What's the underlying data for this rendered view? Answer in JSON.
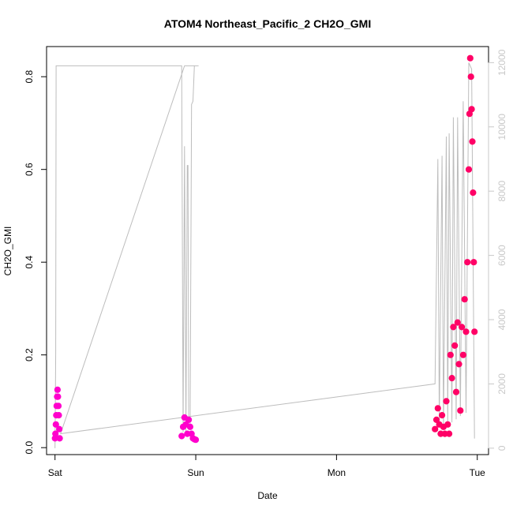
{
  "chart_data": {
    "type": "scatter",
    "title": "ATOM4 Northeast_Pacific_2 CH2O_GMI",
    "xlabel": "Date",
    "ylabel": "CH2O_GMI",
    "x_ticks": [
      "Sat",
      "Sun",
      "Mon",
      "Tue"
    ],
    "xlim_days": [
      -0.06,
      3.08
    ],
    "ylim": [
      -0.015,
      0.865
    ],
    "y_ticks": [
      0.0,
      0.2,
      0.4,
      0.6,
      0.8
    ],
    "y2lim": [
      -200,
      12500
    ],
    "y2_ticks": [
      0,
      2000,
      4000,
      6000,
      8000,
      10000,
      12000
    ],
    "grid": false,
    "colors": {
      "altitude_line": "#bdbdbd",
      "right_axis": "#c8c8c8",
      "marker_early": "#ff00cc",
      "marker_late": "#ff0066"
    },
    "series": [
      {
        "role": "altitude",
        "axis": "right",
        "style": "line",
        "x": [
          0.0,
          0.005,
          0.008,
          0.012,
          0.018,
          0.022,
          0.025,
          0.03,
          0.04,
          0.06,
          0.9,
          0.91,
          0.92,
          0.93,
          0.94,
          0.945,
          0.95,
          0.96,
          0.97,
          0.98,
          0.99,
          1.0,
          1.02,
          1.0,
          0.97,
          0.96,
          0.95,
          0.94,
          0.93,
          0.92,
          0.04,
          2.7,
          2.72,
          2.73,
          2.75,
          2.76,
          2.78,
          2.79,
          2.8,
          2.82,
          2.83,
          2.85,
          2.86,
          2.88,
          2.9,
          2.92,
          2.94,
          2.96,
          2.98
        ],
        "y": [
          0,
          3000,
          11900,
          11900,
          11900,
          11900,
          11900,
          11900,
          11900,
          11900,
          11900,
          500,
          9400,
          500,
          8800,
          8800,
          600,
          700,
          10700,
          10800,
          11900,
          11900,
          11900,
          11900,
          11900,
          11900,
          11900,
          11900,
          11900,
          11900,
          450,
          2000,
          9000,
          800,
          9100,
          700,
          9700,
          700,
          9800,
          800,
          10300,
          900,
          10300,
          1000,
          10800,
          1100,
          12000,
          11800,
          300
        ]
      },
      {
        "role": "CH2O_GMI",
        "axis": "left",
        "style": "points",
        "x": [
          0.0,
          0.003,
          0.006,
          0.009,
          0.012,
          0.015,
          0.018,
          0.021,
          0.024,
          0.027,
          0.03,
          0.033,
          0.9,
          0.91,
          0.92,
          0.93,
          0.94,
          0.95,
          0.96,
          0.97,
          0.98,
          0.99,
          1.0,
          2.7,
          2.71,
          2.72,
          2.73,
          2.74,
          2.75,
          2.76,
          2.77,
          2.78,
          2.79,
          2.8,
          2.81,
          2.82,
          2.83,
          2.84,
          2.85,
          2.86,
          2.87,
          2.88,
          2.89,
          2.9,
          2.91,
          2.92,
          2.93,
          2.94,
          2.945,
          2.95,
          2.955,
          2.96,
          2.965,
          2.97,
          2.975,
          2.98
        ],
        "y": [
          0.02,
          0.03,
          0.05,
          0.07,
          0.09,
          0.11,
          0.125,
          0.11,
          0.09,
          0.07,
          0.04,
          0.02,
          0.025,
          0.045,
          0.065,
          0.05,
          0.03,
          0.06,
          0.045,
          0.03,
          0.02,
          0.018,
          0.017,
          0.04,
          0.06,
          0.085,
          0.05,
          0.03,
          0.07,
          0.045,
          0.03,
          0.1,
          0.05,
          0.03,
          0.2,
          0.15,
          0.26,
          0.22,
          0.12,
          0.27,
          0.18,
          0.08,
          0.26,
          0.2,
          0.32,
          0.25,
          0.4,
          0.6,
          0.72,
          0.84,
          0.8,
          0.73,
          0.66,
          0.55,
          0.4,
          0.25
        ]
      }
    ]
  }
}
